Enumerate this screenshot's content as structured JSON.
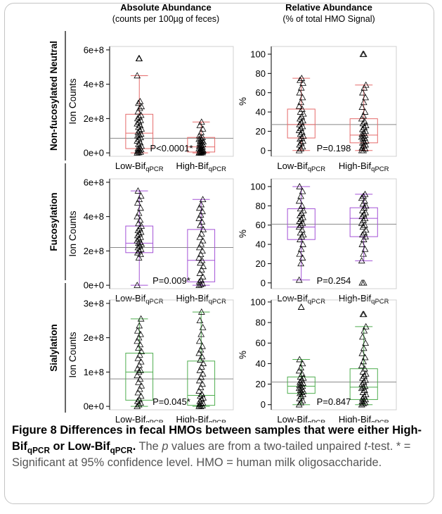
{
  "figure": {
    "col_titles": [
      {
        "line1": "Absolute Abundance",
        "line2": "(counts per 100µg of feces)"
      },
      {
        "line1": "Relative Abundance",
        "line2": "(% of total HMO Signal)"
      }
    ],
    "group_label": {
      "base": "-Bif",
      "sub": "qPCR"
    }
  },
  "chart_data": [
    {
      "type": "boxplot",
      "row": "Non-fucosylated Neutral",
      "ylabel": "Ion Counts",
      "ylim": [
        -20000000.0,
        620000000.0
      ],
      "yticks": [
        {
          "v": 0,
          "label": "0e+0"
        },
        {
          "v": 200000000.0,
          "label": "2e+8"
        },
        {
          "v": 400000000.0,
          "label": "4e+8"
        },
        {
          "v": 600000000.0,
          "label": "6e+8"
        }
      ],
      "reference_line": 85000000.0,
      "p_value": "P<0.0001*",
      "color": "#e56b6b",
      "groups": [
        {
          "name": "Low",
          "whisker_low": 0,
          "q1": 25000000.0,
          "median": 115000000.0,
          "q3": 225000000.0,
          "whisker_high": 450000000.0,
          "outliers": [
            550000000.0
          ],
          "points": [
            0,
            2000000.0,
            5000000.0,
            10000000.0,
            15000000.0,
            20000000.0,
            25000000.0,
            30000000.0,
            40000000.0,
            50000000.0,
            60000000.0,
            70000000.0,
            80000000.0,
            90000000.0,
            100000000.0,
            105000000.0,
            110000000.0,
            120000000.0,
            130000000.0,
            140000000.0,
            150000000.0,
            160000000.0,
            170000000.0,
            180000000.0,
            190000000.0,
            200000000.0,
            210000000.0,
            220000000.0,
            240000000.0,
            260000000.0,
            270000000.0,
            290000000.0,
            300000000.0,
            450000000.0,
            550000000.0
          ]
        },
        {
          "name": "High",
          "whisker_low": 0,
          "q1": 5000000.0,
          "median": 35000000.0,
          "q3": 90000000.0,
          "whisker_high": 180000000.0,
          "outliers": [],
          "points": [
            0,
            0,
            2000000.0,
            4000000.0,
            6000000.0,
            8000000.0,
            10000000.0,
            12000000.0,
            15000000.0,
            18000000.0,
            20000000.0,
            25000000.0,
            30000000.0,
            35000000.0,
            40000000.0,
            45000000.0,
            50000000.0,
            55000000.0,
            60000000.0,
            65000000.0,
            70000000.0,
            75000000.0,
            80000000.0,
            85000000.0,
            90000000.0,
            100000000.0,
            120000000.0,
            140000000.0,
            160000000.0,
            180000000.0
          ]
        }
      ]
    },
    {
      "type": "boxplot",
      "row": "Non-fucosylated Neutral",
      "ylabel": "%",
      "ylim": [
        -6,
        108
      ],
      "yticks": [
        {
          "v": 0,
          "label": "0"
        },
        {
          "v": 20,
          "label": "20"
        },
        {
          "v": 40,
          "label": "40"
        },
        {
          "v": 60,
          "label": "60"
        },
        {
          "v": 80,
          "label": "80"
        },
        {
          "v": 100,
          "label": "100"
        }
      ],
      "reference_line": 27,
      "p_value": "P=0.198",
      "color": "#e56b6b",
      "groups": [
        {
          "name": "Low",
          "whisker_low": 0,
          "q1": 13,
          "median": 27,
          "q3": 43,
          "whisker_high": 75,
          "outliers": [],
          "points": [
            0,
            2,
            4,
            6,
            8,
            10,
            12,
            13,
            15,
            17,
            19,
            21,
            23,
            25,
            27,
            29,
            31,
            33,
            35,
            38,
            40,
            43,
            46,
            50,
            55,
            60,
            65,
            70,
            73,
            75
          ]
        },
        {
          "name": "High",
          "whisker_low": 0,
          "q1": 8,
          "median": 16,
          "q3": 33,
          "whisker_high": 68,
          "outliers": [
            100
          ],
          "points": [
            0,
            0,
            2,
            3,
            5,
            6,
            8,
            9,
            10,
            12,
            13,
            14,
            15,
            16,
            17,
            18,
            20,
            22,
            24,
            26,
            28,
            30,
            33,
            36,
            40,
            45,
            50,
            55,
            60,
            65,
            68,
            100
          ]
        }
      ]
    },
    {
      "type": "boxplot",
      "row": "Fucosylation",
      "ylabel": "Ion Counts",
      "ylim": [
        -20000000.0,
        620000000.0
      ],
      "yticks": [
        {
          "v": 0,
          "label": "0e+0"
        },
        {
          "v": 200000000.0,
          "label": "2e+8"
        },
        {
          "v": 400000000.0,
          "label": "4e+8"
        },
        {
          "v": 600000000.0,
          "label": "6e+8"
        }
      ],
      "reference_line": 220000000.0,
      "p_value": "P=0.009*",
      "color": "#a352d6",
      "groups": [
        {
          "name": "Low",
          "whisker_low": 0,
          "q1": 190000000.0,
          "median": 245000000.0,
          "q3": 345000000.0,
          "whisker_high": 550000000.0,
          "outliers": [],
          "points": [
            0,
            160000000.0,
            180000000.0,
            190000000.0,
            200000000.0,
            210000000.0,
            220000000.0,
            230000000.0,
            240000000.0,
            245000000.0,
            250000000.0,
            260000000.0,
            270000000.0,
            280000000.0,
            290000000.0,
            300000000.0,
            310000000.0,
            320000000.0,
            330000000.0,
            345000000.0,
            360000000.0,
            380000000.0,
            400000000.0,
            420000000.0,
            450000000.0,
            480000000.0,
            500000000.0,
            520000000.0,
            550000000.0
          ]
        },
        {
          "name": "High",
          "whisker_low": 0,
          "q1": 20000000.0,
          "median": 145000000.0,
          "q3": 325000000.0,
          "whisker_high": 500000000.0,
          "outliers": [],
          "points": [
            0,
            5000000.0,
            10000000.0,
            20000000.0,
            30000000.0,
            50000000.0,
            70000000.0,
            90000000.0,
            110000000.0,
            130000000.0,
            145000000.0,
            160000000.0,
            180000000.0,
            200000000.0,
            220000000.0,
            240000000.0,
            260000000.0,
            280000000.0,
            300000000.0,
            325000000.0,
            350000000.0,
            370000000.0,
            390000000.0,
            410000000.0,
            430000000.0,
            450000000.0,
            470000000.0,
            500000000.0
          ]
        }
      ]
    },
    {
      "type": "boxplot",
      "row": "Fucosylation",
      "ylabel": "%",
      "ylim": [
        -6,
        108
      ],
      "yticks": [
        {
          "v": 0,
          "label": "0"
        },
        {
          "v": 20,
          "label": "20"
        },
        {
          "v": 40,
          "label": "40"
        },
        {
          "v": 60,
          "label": "60"
        },
        {
          "v": 80,
          "label": "80"
        },
        {
          "v": 100,
          "label": "100"
        }
      ],
      "reference_line": 61,
      "p_value": "P=0.254",
      "color": "#a352d6",
      "groups": [
        {
          "name": "Low",
          "whisker_low": 3,
          "q1": 45,
          "median": 58,
          "q3": 77,
          "whisker_high": 100,
          "outliers": [],
          "points": [
            3,
            20,
            26,
            30,
            35,
            40,
            45,
            48,
            50,
            52,
            55,
            58,
            60,
            62,
            64,
            66,
            68,
            70,
            72,
            75,
            77,
            80,
            85,
            90,
            95,
            100
          ]
        },
        {
          "name": "High",
          "whisker_low": 23,
          "q1": 48,
          "median": 67,
          "q3": 78,
          "whisker_high": 92,
          "outliers": [
            0
          ],
          "points": [
            23,
            30,
            35,
            40,
            45,
            48,
            50,
            52,
            55,
            58,
            60,
            62,
            65,
            67,
            69,
            71,
            73,
            75,
            78,
            80,
            82,
            85,
            88,
            90,
            92,
            0
          ]
        }
      ]
    },
    {
      "type": "boxplot",
      "row": "Sialylation",
      "ylabel": "Ion Counts",
      "ylim": [
        -10000000.0,
        310000000.0
      ],
      "yticks": [
        {
          "v": 0,
          "label": "0e+0"
        },
        {
          "v": 100000000.0,
          "label": "1e+8"
        },
        {
          "v": 200000000.0,
          "label": "2e+8"
        },
        {
          "v": 300000000.0,
          "label": "3e+8"
        }
      ],
      "reference_line": 80000000.0,
      "p_value": "P=0.045*",
      "color": "#4fae4f",
      "groups": [
        {
          "name": "Low",
          "whisker_low": 0,
          "q1": 18000000.0,
          "median": 100000000.0,
          "q3": 155000000.0,
          "whisker_high": 255000000.0,
          "outliers": [],
          "points": [
            0,
            5000000.0,
            10000000.0,
            15000000.0,
            20000000.0,
            30000000.0,
            40000000.0,
            50000000.0,
            60000000.0,
            70000000.0,
            80000000.0,
            90000000.0,
            100000000.0,
            105000000.0,
            110000000.0,
            120000000.0,
            130000000.0,
            140000000.0,
            150000000.0,
            160000000.0,
            170000000.0,
            180000000.0,
            190000000.0,
            200000000.0,
            210000000.0,
            220000000.0,
            235000000.0,
            255000000.0
          ]
        },
        {
          "name": "High",
          "whisker_low": 0,
          "q1": 3000000.0,
          "median": 32000000.0,
          "q3": 132000000.0,
          "whisker_high": 275000000.0,
          "outliers": [],
          "points": [
            0,
            0,
            2000000.0,
            5000000.0,
            8000000.0,
            10000000.0,
            15000000.0,
            20000000.0,
            25000000.0,
            30000000.0,
            35000000.0,
            45000000.0,
            55000000.0,
            65000000.0,
            75000000.0,
            85000000.0,
            95000000.0,
            105000000.0,
            115000000.0,
            125000000.0,
            135000000.0,
            145000000.0,
            155000000.0,
            165000000.0,
            175000000.0,
            190000000.0,
            210000000.0,
            230000000.0,
            250000000.0,
            275000000.0
          ]
        }
      ]
    },
    {
      "type": "boxplot",
      "row": "Sialylation",
      "ylabel": "%",
      "ylim": [
        -5,
        102
      ],
      "yticks": [
        {
          "v": 0,
          "label": "0"
        },
        {
          "v": 20,
          "label": "20"
        },
        {
          "v": 40,
          "label": "40"
        },
        {
          "v": 60,
          "label": "60"
        },
        {
          "v": 80,
          "label": "80"
        },
        {
          "v": 100,
          "label": "100"
        }
      ],
      "reference_line": 22,
      "p_value": "P=0.847",
      "color": "#4fae4f",
      "groups": [
        {
          "name": "Low",
          "whisker_low": 0,
          "q1": 11,
          "median": 18,
          "q3": 27,
          "whisker_high": 44,
          "outliers": [
            95
          ],
          "points": [
            0,
            2,
            4,
            6,
            8,
            10,
            11,
            12,
            13,
            14,
            15,
            16,
            17,
            18,
            19,
            20,
            21,
            22,
            24,
            26,
            27,
            30,
            33,
            36,
            40,
            44,
            95
          ]
        },
        {
          "name": "High",
          "whisker_low": 0,
          "q1": 5,
          "median": 17,
          "q3": 35,
          "whisker_high": 76,
          "outliers": [
            88
          ],
          "points": [
            0,
            1,
            2,
            3,
            4,
            5,
            6,
            8,
            10,
            12,
            14,
            16,
            17,
            18,
            20,
            22,
            24,
            26,
            28,
            30,
            32,
            35,
            38,
            42,
            46,
            50,
            55,
            60,
            66,
            72,
            76,
            88
          ]
        }
      ]
    }
  ],
  "caption": {
    "label": "Figure 8",
    "title_1": "Differences in fecal HMOs between samples that were either High-Bif",
    "title_sub_1": "qPCR",
    "title_2": " or Low-Bif",
    "title_sub_2": "qPCR",
    "title_end": ".",
    "desc_1": "The ",
    "desc_p": "p",
    "desc_2": " values are from a two-tailed unpaired ",
    "desc_t": "t",
    "desc_3": "-test. * = Significant at 95% confidence level. HMO = human milk oligosaccharide."
  }
}
